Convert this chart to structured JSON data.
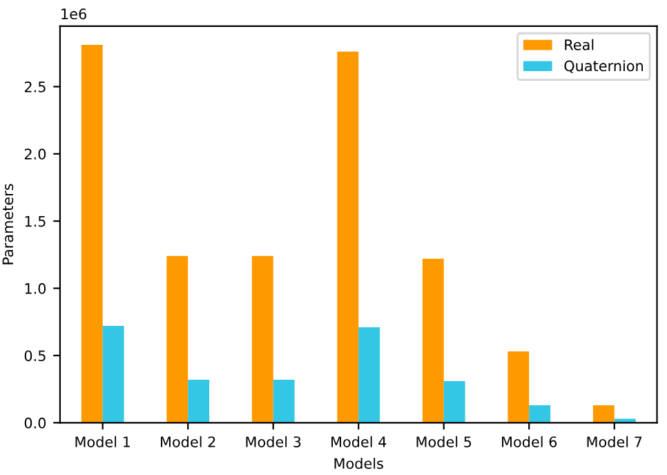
{
  "chart_data": {
    "type": "bar",
    "xlabel": "Models",
    "ylabel": "Parameters",
    "categories": [
      "Model 1",
      "Model 2",
      "Model 3",
      "Model 4",
      "Model 5",
      "Model 6",
      "Model 7"
    ],
    "series": [
      {
        "name": "Real",
        "color": "#ff9900",
        "values": [
          2.81,
          1.24,
          1.24,
          2.76,
          1.22,
          0.53,
          0.13
        ]
      },
      {
        "name": "Quaternion",
        "color": "#33c6e5",
        "values": [
          0.72,
          0.32,
          0.32,
          0.71,
          0.31,
          0.13,
          0.03
        ]
      }
    ],
    "ylim": [
      0,
      2.95
    ],
    "yticks": [
      {
        "value": 0,
        "label": "0.0"
      },
      0.5,
      {
        "value": 1,
        "label": "1.0"
      },
      1.5,
      {
        "value": 2,
        "label": "2.0"
      },
      2.5
    ],
    "annotations": [
      "1e6"
    ],
    "legend": "top right",
    "grid": false
  }
}
